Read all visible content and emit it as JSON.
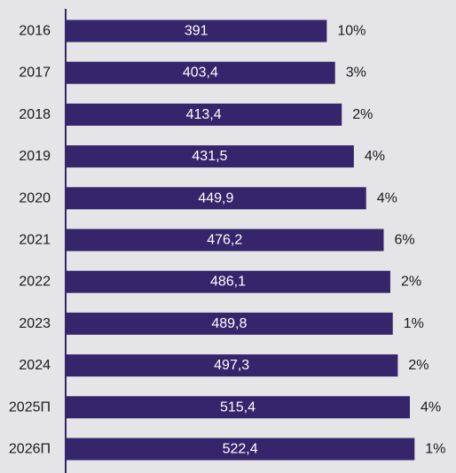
{
  "chart_data": {
    "type": "bar",
    "orientation": "horizontal",
    "categories": [
      "2016",
      "2017",
      "2018",
      "2019",
      "2020",
      "2021",
      "2022",
      "2023",
      "2024",
      "2025П",
      "2026П"
    ],
    "values": [
      391,
      403.4,
      413.4,
      431.5,
      449.9,
      476.2,
      486.1,
      489.8,
      497.3,
      515.4,
      522.4
    ],
    "value_labels": [
      "391",
      "403,4",
      "413,4",
      "431,5",
      "449,9",
      "476,2",
      "486,1",
      "489,8",
      "497,3",
      "515,4",
      "522,4"
    ],
    "growth_labels": [
      "10%",
      "3%",
      "2%",
      "4%",
      "4%",
      "6%",
      "2%",
      "1%",
      "2%",
      "4%",
      "1%"
    ],
    "xlim": [
      0,
      530
    ],
    "grid": false,
    "legend": "none",
    "title": "",
    "xlabel": "",
    "ylabel": ""
  },
  "colors": {
    "bar": "#35256b",
    "background": "#e5e5e8",
    "axis": "#35256b",
    "value_text": "#ffffff",
    "label_text": "#1a1a1a"
  }
}
